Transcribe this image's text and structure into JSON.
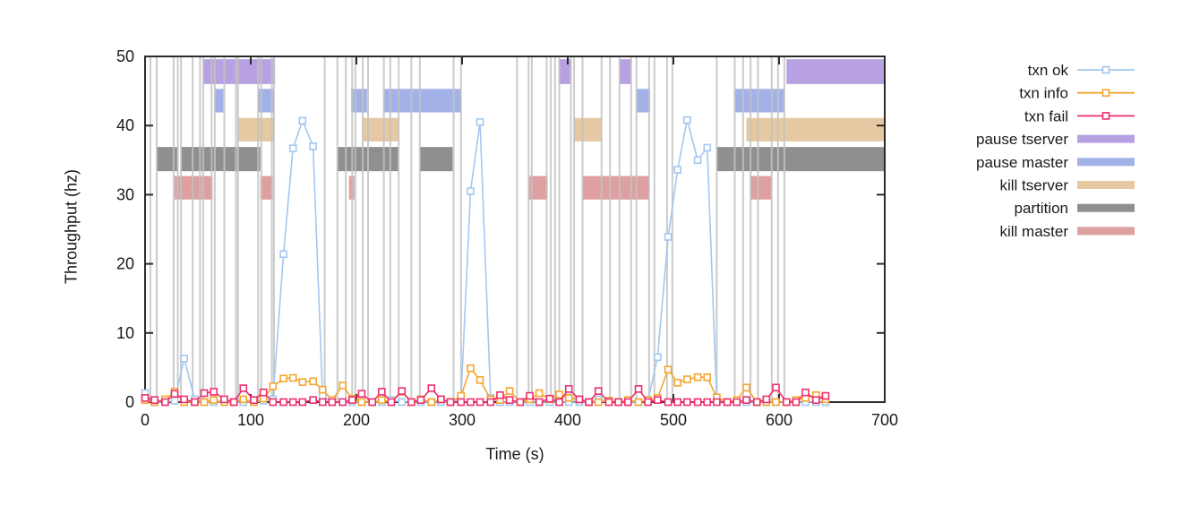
{
  "chart_data": {
    "type": "line",
    "title": "",
    "xlabel": "Time (s)",
    "ylabel": "Throughput (hz)",
    "xlim": [
      0,
      700
    ],
    "ylim": [
      0,
      50
    ],
    "xticks": [
      0,
      100,
      200,
      300,
      400,
      500,
      600,
      700
    ],
    "yticks": [
      0,
      10,
      20,
      30,
      40,
      50
    ],
    "grid": false,
    "legend_position": "outside-right",
    "x": [
      0,
      9,
      19,
      28,
      37,
      47,
      56,
      65,
      75,
      84,
      93,
      103,
      112,
      121,
      131,
      140,
      149,
      159,
      168,
      177,
      187,
      196,
      205,
      215,
      224,
      233,
      243,
      252,
      261,
      271,
      280,
      289,
      299,
      308,
      317,
      327,
      336,
      345,
      355,
      364,
      373,
      383,
      392,
      401,
      411,
      420,
      429,
      439,
      448,
      457,
      467,
      476,
      485,
      495,
      504,
      513,
      523,
      532,
      541,
      551,
      560,
      569,
      579,
      588,
      597,
      607,
      616,
      625,
      635,
      644
    ],
    "series": [
      {
        "name": "txn ok",
        "color": "#a3c7f0",
        "marker": "open-square",
        "values": [
          1.3,
          0,
          0,
          0.2,
          6.3,
          0.4,
          0,
          0,
          0,
          0,
          0,
          0,
          0.2,
          0.4,
          21.4,
          36.7,
          40.7,
          37.0,
          0.9,
          0,
          0,
          0,
          0,
          0,
          0,
          0.3,
          0,
          0,
          0,
          0,
          0,
          0,
          0.5,
          30.5,
          40.5,
          0.6,
          0,
          0,
          0,
          0,
          0,
          0,
          0,
          0,
          0,
          0,
          0.4,
          0.2,
          0,
          0,
          0,
          0.3,
          6.5,
          23.9,
          33.6,
          40.8,
          35.0,
          36.8,
          0.3,
          0,
          0,
          0,
          0,
          0,
          0,
          0,
          0,
          0,
          0,
          0
        ]
      },
      {
        "name": "txn info",
        "color": "#f6a42d",
        "marker": "open-square",
        "values": [
          0.3,
          0,
          0.4,
          1.5,
          0,
          0,
          0,
          0.3,
          0,
          0,
          0.4,
          0,
          0.5,
          2.3,
          3.4,
          3.5,
          2.9,
          3.0,
          1.8,
          0.3,
          2.4,
          0.5,
          0,
          0,
          0.3,
          0,
          1.5,
          0,
          0.4,
          0,
          0.4,
          0,
          0.9,
          4.9,
          3.2,
          0.4,
          0.3,
          1.6,
          0,
          0.4,
          1.3,
          0.4,
          1.1,
          0.6,
          0.4,
          0,
          0,
          0.2,
          0,
          0.3,
          0,
          0.3,
          0.6,
          4.7,
          2.8,
          3.3,
          3.6,
          3.6,
          0.7,
          0,
          0.3,
          2.1,
          0,
          0,
          0,
          0,
          0.3,
          0.6,
          1.0,
          0.4
        ]
      },
      {
        "name": "txn fail",
        "color": "#ee2e6e",
        "marker": "open-square",
        "values": [
          0.6,
          0.3,
          0,
          1.2,
          0.4,
          0,
          1.3,
          1.5,
          0.4,
          0,
          2.0,
          0.3,
          1.4,
          0,
          0,
          0,
          0,
          0.3,
          0,
          0,
          0,
          0.3,
          1.2,
          0,
          1.5,
          0,
          1.6,
          0,
          0.3,
          2.0,
          0.4,
          0,
          0,
          0,
          0,
          0,
          1.0,
          0.3,
          0,
          0.9,
          0,
          0.5,
          0,
          1.9,
          0.4,
          0,
          1.6,
          0,
          0,
          0,
          1.9,
          0,
          0.3,
          0,
          0,
          0,
          0,
          0,
          0,
          0,
          0,
          0.3,
          0,
          0.4,
          2.1,
          0,
          0,
          1.4,
          0.3,
          0.9
        ]
      }
    ],
    "bands": [
      {
        "name": "pause tserver",
        "color": "#b7a1e3",
        "y_range": [
          46.0,
          49.6
        ],
        "segments": [
          [
            55,
            123
          ],
          [
            392,
            403
          ],
          [
            449,
            460
          ],
          [
            607,
            700
          ]
        ]
      },
      {
        "name": "pause master",
        "color": "#a2b1e8",
        "y_range": [
          41.9,
          45.3
        ],
        "segments": [
          [
            66,
            74
          ],
          [
            107,
            122
          ],
          [
            195,
            210
          ],
          [
            226,
            299
          ],
          [
            465,
            478
          ],
          [
            558,
            605
          ]
        ]
      },
      {
        "name": "kill tserver",
        "color": "#e6c9a2",
        "y_range": [
          37.7,
          41.1
        ],
        "segments": [
          [
            88,
            122
          ],
          [
            206,
            240
          ],
          [
            406,
            432
          ],
          [
            569,
            700
          ]
        ]
      },
      {
        "name": "partition",
        "color": "#8f8f8f",
        "y_range": [
          33.4,
          36.9
        ],
        "segments": [
          [
            11,
            31
          ],
          [
            34,
            109
          ],
          [
            182,
            240
          ],
          [
            260,
            291
          ],
          [
            541,
            700
          ]
        ]
      },
      {
        "name": "kill master",
        "color": "#dd9f9f",
        "y_range": [
          29.3,
          32.7
        ],
        "segments": [
          [
            28,
            64
          ],
          [
            109,
            121
          ],
          [
            193,
            198
          ],
          [
            363,
            381
          ],
          [
            414,
            477
          ],
          [
            573,
            593
          ]
        ]
      }
    ],
    "event_lines": {
      "color": "#c3c3c3",
      "times": [
        5,
        11,
        27,
        31,
        34,
        45,
        52,
        55,
        63,
        66,
        75,
        86,
        88,
        107,
        110,
        120,
        122,
        170,
        182,
        190,
        196,
        199,
        206,
        211,
        226,
        232,
        240,
        252,
        260,
        292,
        299,
        352,
        363,
        366,
        380,
        384,
        388,
        392,
        403,
        406,
        414,
        432,
        440,
        449,
        460,
        465,
        477,
        482,
        494,
        499,
        541,
        558,
        566,
        573,
        580,
        593,
        599,
        605
      ]
    },
    "border_color": "#2b2b2b"
  }
}
